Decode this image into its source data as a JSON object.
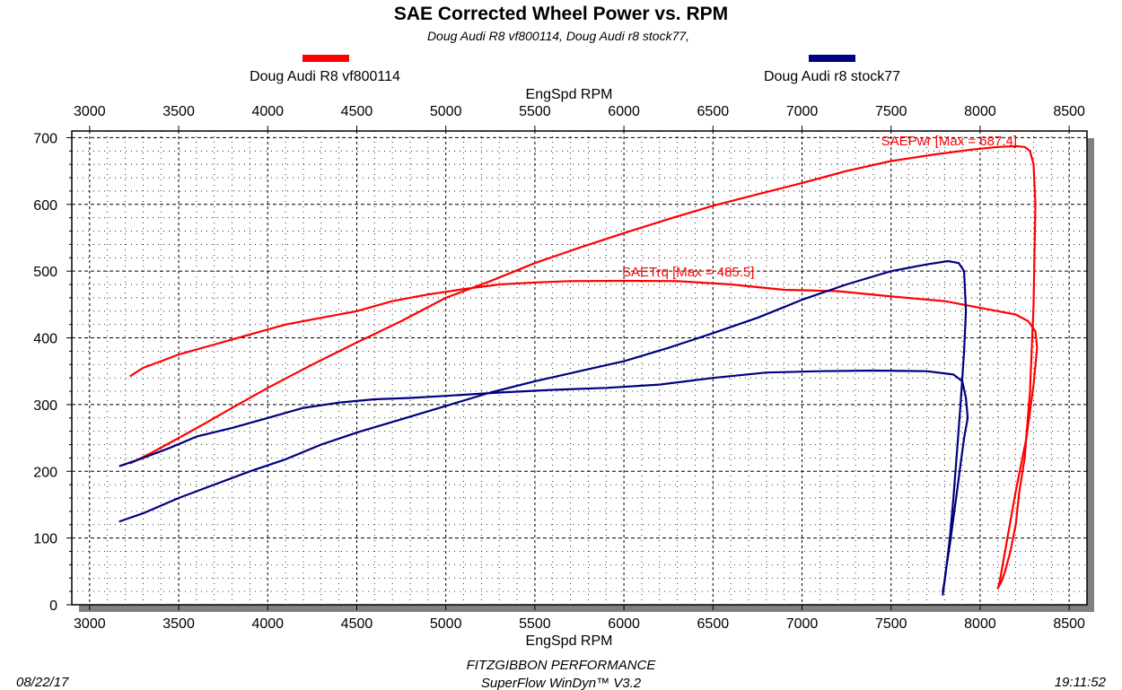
{
  "chart_data": {
    "type": "line",
    "title": "SAE Corrected Wheel Power vs. RPM",
    "subtitle": "Doug Audi R8 vf800114, Doug Audi r8 stock77,",
    "xlabel": "EngSpd RPM",
    "ylabel": "",
    "xlim": [
      2900,
      8600
    ],
    "ylim": [
      0,
      710
    ],
    "x_ticks": [
      3000,
      3500,
      4000,
      4500,
      5000,
      5500,
      6000,
      6500,
      7000,
      7500,
      8000,
      8500
    ],
    "y_ticks": [
      0,
      100,
      200,
      300,
      400,
      500,
      600,
      700
    ],
    "legend": [
      {
        "name": "Doug Audi R8 vf800114",
        "color": "#ff0000"
      },
      {
        "name": "Doug Audi r8 stock77",
        "color": "#000080"
      }
    ],
    "annotations": {
      "power": "SAEPwr [Max = 687.4]",
      "torque": "SAETrq [Max = 485.5]"
    },
    "series": [
      {
        "name": "Doug Audi R8 vf800114 SAEPwr",
        "color": "#ff0000",
        "x": [
          3230,
          3350,
          3500,
          3650,
          3800,
          4000,
          4250,
          4500,
          4750,
          5000,
          5250,
          5500,
          5750,
          6000,
          6250,
          6500,
          6750,
          7000,
          7250,
          7500,
          7750,
          7950,
          8100,
          8200,
          8250,
          8280,
          8300,
          8310,
          8300,
          8280,
          8250,
          8220,
          8200,
          8170,
          8140,
          8120,
          8100
        ],
        "y": [
          212,
          228,
          250,
          272,
          295,
          325,
          360,
          393,
          425,
          460,
          485,
          512,
          535,
          557,
          578,
          598,
          615,
          632,
          650,
          665,
          675,
          682,
          686,
          687.4,
          686,
          680,
          660,
          600,
          450,
          320,
          220,
          170,
          120,
          80,
          50,
          35,
          25
        ]
      },
      {
        "name": "Doug Audi R8 vf800114 SAETrq",
        "color": "#ff0000",
        "x": [
          3230,
          3300,
          3400,
          3500,
          3700,
          3900,
          4100,
          4300,
          4500,
          4700,
          4900,
          5100,
          5300,
          5500,
          5700,
          6000,
          6300,
          6600,
          6900,
          7200,
          7500,
          7800,
          8000,
          8100,
          8200,
          8270,
          8310,
          8320,
          8300,
          8260,
          8200,
          8160,
          8130,
          8110,
          8100
        ],
        "y": [
          343,
          355,
          365,
          375,
          390,
          405,
          420,
          430,
          440,
          455,
          465,
          473,
          480,
          483,
          485,
          485.5,
          485,
          480,
          472,
          470,
          462,
          455,
          445,
          440,
          435,
          425,
          410,
          385,
          330,
          250,
          170,
          110,
          65,
          35,
          25
        ]
      },
      {
        "name": "Doug Audi r8 stock77 SAEPwr",
        "color": "#000080",
        "x": [
          3170,
          3300,
          3500,
          3700,
          3900,
          4100,
          4300,
          4500,
          4750,
          5000,
          5250,
          5500,
          5750,
          6000,
          6250,
          6500,
          6750,
          7000,
          7250,
          7500,
          7700,
          7820,
          7880,
          7910,
          7920,
          7910,
          7890,
          7870,
          7850,
          7830,
          7810,
          7800,
          7790
        ],
        "y": [
          125,
          137,
          160,
          180,
          200,
          218,
          240,
          258,
          278,
          298,
          318,
          335,
          350,
          365,
          385,
          407,
          430,
          457,
          480,
          500,
          510,
          515,
          512,
          500,
          440,
          380,
          300,
          230,
          160,
          100,
          55,
          35,
          20
        ]
      },
      {
        "name": "Doug Audi r8 stock77 SAETrq",
        "color": "#000080",
        "x": [
          3170,
          3300,
          3450,
          3600,
          3800,
          4000,
          4200,
          4400,
          4600,
          4800,
          5000,
          5300,
          5600,
          5900,
          6200,
          6500,
          6800,
          7100,
          7400,
          7700,
          7850,
          7900,
          7920,
          7930,
          7910,
          7890,
          7870,
          7850,
          7830,
          7810,
          7790
        ],
        "y": [
          208,
          220,
          235,
          252,
          265,
          280,
          295,
          303,
          308,
          310,
          313,
          318,
          322,
          325,
          330,
          340,
          348,
          350,
          351,
          350,
          345,
          335,
          310,
          280,
          250,
          210,
          170,
          130,
          90,
          55,
          15
        ]
      }
    ]
  },
  "footer": {
    "date": "08/22/17",
    "company": "FITZGIBBON PERFORMANCE",
    "software": "SuperFlow WinDyn™ V3.2",
    "time": "19:11:52"
  }
}
